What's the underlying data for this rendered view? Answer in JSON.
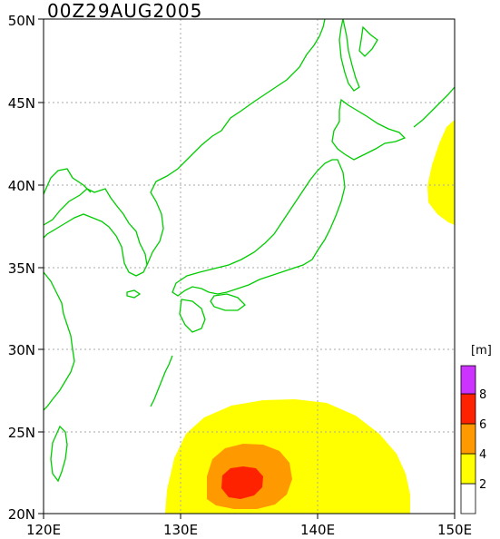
{
  "title": "00Z29AUG2005",
  "axes": {
    "x_ticks": [
      "120E",
      "130E",
      "140E",
      "150E"
    ],
    "y_ticks": [
      "20N",
      "25N",
      "30N",
      "35N",
      "40N",
      "45N",
      "50N"
    ]
  },
  "legend": {
    "unit": "[m]",
    "labels": [
      "2",
      "4",
      "6",
      "8"
    ],
    "colors": [
      "#ffffff",
      "#ffff00",
      "#ff9900",
      "#ff2200",
      "#cc33ff"
    ]
  },
  "colors": {
    "coast": "#00cc00",
    "grid": "#aaaaaa"
  }
}
